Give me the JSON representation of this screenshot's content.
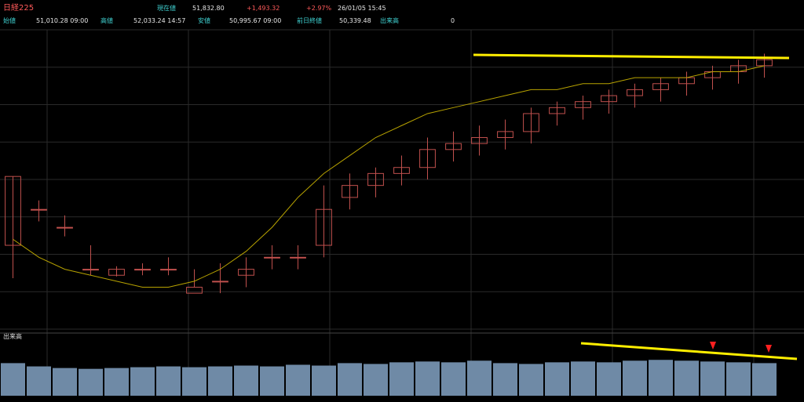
{
  "header": {
    "symbol": "日経225",
    "current_label": "現在値",
    "current_value": "51,832.80",
    "change": "+1,493.32",
    "change_pct": "+2.97%",
    "datetime": "26/01/05  15:45",
    "open_label": "始値",
    "open_value": "51,010.28  09:00",
    "high_label": "高値",
    "high_value": "52,033.24  14:57",
    "low_label": "安値",
    "low_value": "50,995.67  09:00",
    "prev_close_label": "前日終値",
    "prev_close_value": "50,339.48",
    "volume_label": "出来高",
    "volume_value": "0"
  },
  "volume_panel_label": "出来高",
  "colors": {
    "up": "#c0504d",
    "down": "#7fd3f0",
    "ma": "#b8a300",
    "volume": "#6f8aa6",
    "annotation": "#ffee00",
    "marker": "#ff2020"
  },
  "chart_data": [
    {
      "type": "candlestick",
      "title": "",
      "series": [
        {
          "name": "",
          "ohlc": [
            [
              0.64,
              0.755,
              0.585,
              0.755
            ],
            [
              0.7,
              0.68,
              0.715,
              0.7
            ],
            [
              0.67,
              0.655,
              0.69,
              0.67
            ],
            [
              0.6,
              0.59,
              0.64,
              0.6
            ],
            [
              0.59,
              0.588,
              0.605,
              0.6
            ],
            [
              0.6,
              0.59,
              0.61,
              0.6
            ],
            [
              0.6,
              0.59,
              0.62,
              0.6
            ],
            [
              0.56,
              0.57,
              0.6,
              0.57
            ],
            [
              0.58,
              0.56,
              0.61,
              0.58
            ],
            [
              0.59,
              0.57,
              0.62,
              0.6
            ],
            [
              0.62,
              0.6,
              0.64,
              0.62
            ],
            [
              0.62,
              0.6,
              0.64,
              0.62
            ],
            [
              0.64,
              0.62,
              0.74,
              0.7
            ],
            [
              0.72,
              0.7,
              0.76,
              0.74
            ],
            [
              0.74,
              0.72,
              0.77,
              0.76
            ],
            [
              0.76,
              0.74,
              0.79,
              0.77
            ],
            [
              0.77,
              0.75,
              0.82,
              0.8
            ],
            [
              0.8,
              0.78,
              0.83,
              0.81
            ],
            [
              0.81,
              0.79,
              0.84,
              0.82
            ],
            [
              0.82,
              0.8,
              0.85,
              0.83
            ],
            [
              0.83,
              0.81,
              0.87,
              0.86
            ],
            [
              0.86,
              0.84,
              0.88,
              0.87
            ],
            [
              0.87,
              0.85,
              0.89,
              0.88
            ],
            [
              0.88,
              0.86,
              0.9,
              0.89
            ],
            [
              0.89,
              0.87,
              0.91,
              0.9
            ],
            [
              0.9,
              0.88,
              0.92,
              0.91
            ],
            [
              0.91,
              0.89,
              0.93,
              0.92
            ],
            [
              0.92,
              0.9,
              0.94,
              0.93
            ],
            [
              0.93,
              0.91,
              0.95,
              0.94
            ],
            [
              0.94,
              0.92,
              0.96,
              0.95
            ]
          ]
        }
      ],
      "ma_series": [
        {
          "name": "",
          "values": [
            0.65,
            0.62,
            0.6,
            0.59,
            0.58,
            0.57,
            0.57,
            0.58,
            0.6,
            0.63,
            0.67,
            0.72,
            0.76,
            0.79,
            0.82,
            0.84,
            0.86,
            0.87,
            0.88,
            0.89,
            0.9,
            0.9,
            0.91,
            0.91,
            0.92,
            0.92,
            0.92,
            0.93,
            0.93,
            0.94
          ]
        }
      ],
      "ylim": [
        0.5,
        1.0
      ],
      "grid": true
    },
    {
      "type": "bar",
      "title": "",
      "values": [
        0.4,
        0.36,
        0.34,
        0.33,
        0.34,
        0.35,
        0.36,
        0.35,
        0.36,
        0.37,
        0.36,
        0.38,
        0.37,
        0.4,
        0.39,
        0.41,
        0.42,
        0.41,
        0.43,
        0.4,
        0.39,
        0.41,
        0.42,
        0.41,
        0.43,
        0.44,
        0.43,
        0.42,
        0.41,
        0.4
      ],
      "ylim": [
        0,
        1
      ],
      "grid": true
    }
  ]
}
